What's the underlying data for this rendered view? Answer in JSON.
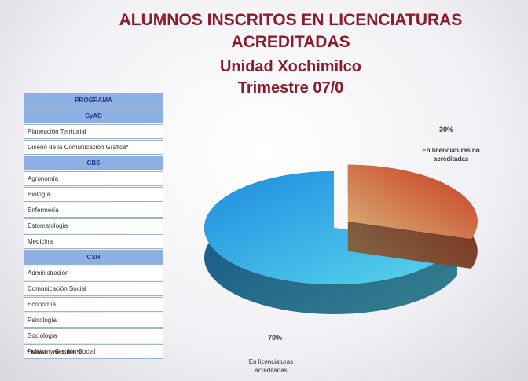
{
  "chart_data": {
    "type": "pie3d",
    "title": "ALUMNOS INSCRITOS EN LICENCIATURAS ACREDITADAS",
    "subtitle": [
      "Unidad Xochimilco",
      "Trimestre 07/0"
    ],
    "categories": [
      "En licenciaturas acreditadas",
      "En licenciaturas no acreditadas"
    ],
    "values": [
      70,
      30
    ],
    "value_labels": [
      "70%",
      "30%"
    ],
    "colors": [
      "#1f8be0",
      "#c8361c"
    ]
  },
  "table": {
    "header": "PROGRAMA",
    "groups": [
      {
        "name": "CyAD",
        "programs": [
          "Planeación Territorial",
          "Diseño de la Comunicación Gráfica*"
        ]
      },
      {
        "name": "CBS",
        "programs": [
          "Agronomía",
          "Biología",
          "Enfermería",
          "Estomatología",
          "Medicina"
        ]
      },
      {
        "name": "CSH",
        "programs": [
          "Administración",
          "Comunicación Social",
          "Economía",
          "Psicología",
          "Sociología",
          "Política y Gestión Social"
        ]
      }
    ],
    "note": "* Nivel 1 de CIEES"
  }
}
